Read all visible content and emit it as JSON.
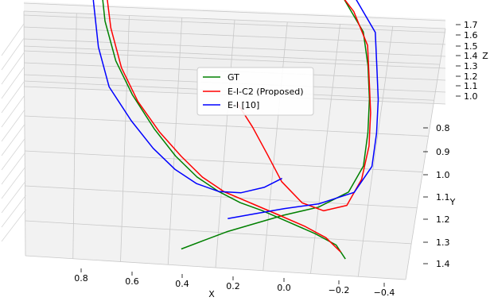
{
  "chart_data": {
    "type": "line3d",
    "xlabel": "X",
    "ylabel": "Y",
    "zlabel": "Z",
    "x_ticks": [
      "0.8",
      "0.6",
      "0.4",
      "0.2",
      "0.0",
      "−0.2",
      "−0.4"
    ],
    "y_ticks": [
      "0.8",
      "0.9",
      "1.0",
      "1.1",
      "1.2",
      "1.3",
      "1.4"
    ],
    "z_ticks": [
      "1.0",
      "1.1",
      "1.2",
      "1.3",
      "1.4",
      "1.5",
      "1.6",
      "1.7"
    ],
    "xlim": [
      0.95,
      -0.45
    ],
    "ylim": [
      0.7,
      1.45
    ],
    "zlim": [
      1.0,
      1.7
    ],
    "grid": true,
    "legend_position": "upper-center",
    "series": [
      {
        "name": "GT",
        "color": "#008000",
        "points": [
          [
            0.38,
            1.4
          ],
          [
            0.3,
            1.37
          ],
          [
            0.22,
            1.34
          ],
          [
            0.12,
            1.31
          ],
          [
            0.02,
            1.28
          ],
          [
            -0.1,
            1.25
          ],
          [
            -0.2,
            1.2
          ],
          [
            -0.24,
            1.12
          ],
          [
            -0.24,
            1.02
          ],
          [
            -0.23,
            0.92
          ],
          [
            -0.21,
            0.82
          ],
          [
            -0.18,
            0.72
          ],
          [
            -0.1,
            0.62
          ],
          [
            -0.02,
            0.54
          ],
          [
            0.06,
            0.47
          ],
          [
            0.16,
            0.4
          ],
          [
            0.26,
            0.33
          ],
          [
            0.38,
            0.28
          ],
          [
            0.48,
            0.25
          ],
          [
            0.56,
            0.24
          ],
          [
            0.62,
            0.26
          ],
          [
            0.66,
            0.3
          ],
          [
            0.68,
            0.36
          ],
          [
            0.7,
            0.45
          ],
          [
            0.7,
            0.58
          ],
          [
            0.68,
            0.72
          ],
          [
            0.64,
            0.84
          ],
          [
            0.58,
            0.94
          ],
          [
            0.5,
            1.04
          ],
          [
            0.42,
            1.12
          ],
          [
            0.34,
            1.18
          ],
          [
            0.26,
            1.22
          ],
          [
            0.18,
            1.25
          ],
          [
            0.1,
            1.27
          ],
          [
            0.0,
            1.3
          ],
          [
            -0.1,
            1.33
          ],
          [
            -0.18,
            1.36
          ],
          [
            -0.22,
            1.4
          ]
        ]
      },
      {
        "name": "E-I-C2 (Proposed)",
        "color": "#ff0000",
        "points": [
          [
            0.22,
            0.95
          ],
          [
            0.16,
            1.02
          ],
          [
            0.1,
            1.1
          ],
          [
            0.04,
            1.18
          ],
          [
            -0.04,
            1.24
          ],
          [
            -0.12,
            1.26
          ],
          [
            -0.2,
            1.24
          ],
          [
            -0.24,
            1.16
          ],
          [
            -0.25,
            1.06
          ],
          [
            -0.24,
            0.96
          ],
          [
            -0.22,
            0.86
          ],
          [
            -0.2,
            0.76
          ],
          [
            -0.14,
            0.66
          ],
          [
            -0.06,
            0.58
          ],
          [
            0.04,
            0.5
          ],
          [
            0.14,
            0.43
          ],
          [
            0.24,
            0.36
          ],
          [
            0.36,
            0.31
          ],
          [
            0.46,
            0.27
          ],
          [
            0.56,
            0.26
          ],
          [
            0.62,
            0.28
          ],
          [
            0.66,
            0.33
          ],
          [
            0.67,
            0.4
          ],
          [
            0.68,
            0.5
          ],
          [
            0.68,
            0.62
          ],
          [
            0.66,
            0.74
          ],
          [
            0.62,
            0.86
          ],
          [
            0.56,
            0.96
          ],
          [
            0.48,
            1.05
          ],
          [
            0.4,
            1.12
          ],
          [
            0.32,
            1.18
          ],
          [
            0.24,
            1.22
          ],
          [
            0.14,
            1.25
          ],
          [
            0.04,
            1.28
          ],
          [
            -0.06,
            1.31
          ],
          [
            -0.14,
            1.34
          ],
          [
            -0.2,
            1.38
          ]
        ]
      },
      {
        "name": "E-I [10]",
        "color": "#0000ff",
        "points": [
          [
            0.22,
            1.3
          ],
          [
            0.12,
            1.28
          ],
          [
            0.02,
            1.26
          ],
          [
            -0.1,
            1.24
          ],
          [
            -0.22,
            1.2
          ],
          [
            -0.27,
            1.12
          ],
          [
            -0.27,
            1.02
          ],
          [
            -0.26,
            0.92
          ],
          [
            -0.24,
            0.82
          ],
          [
            -0.22,
            0.72
          ],
          [
            -0.14,
            0.62
          ],
          [
            -0.06,
            0.54
          ],
          [
            0.04,
            0.46
          ],
          [
            0.14,
            0.38
          ],
          [
            0.24,
            0.3
          ],
          [
            0.36,
            0.24
          ],
          [
            0.48,
            0.2
          ],
          [
            0.58,
            0.2
          ],
          [
            0.66,
            0.23
          ],
          [
            0.7,
            0.3
          ],
          [
            0.72,
            0.4
          ],
          [
            0.72,
            0.52
          ],
          [
            0.72,
            0.66
          ],
          [
            0.7,
            0.8
          ],
          [
            0.66,
            0.92
          ],
          [
            0.58,
            1.02
          ],
          [
            0.5,
            1.1
          ],
          [
            0.42,
            1.16
          ],
          [
            0.34,
            1.2
          ],
          [
            0.26,
            1.22
          ],
          [
            0.18,
            1.22
          ],
          [
            0.1,
            1.2
          ],
          [
            0.04,
            1.17
          ]
        ]
      }
    ]
  }
}
